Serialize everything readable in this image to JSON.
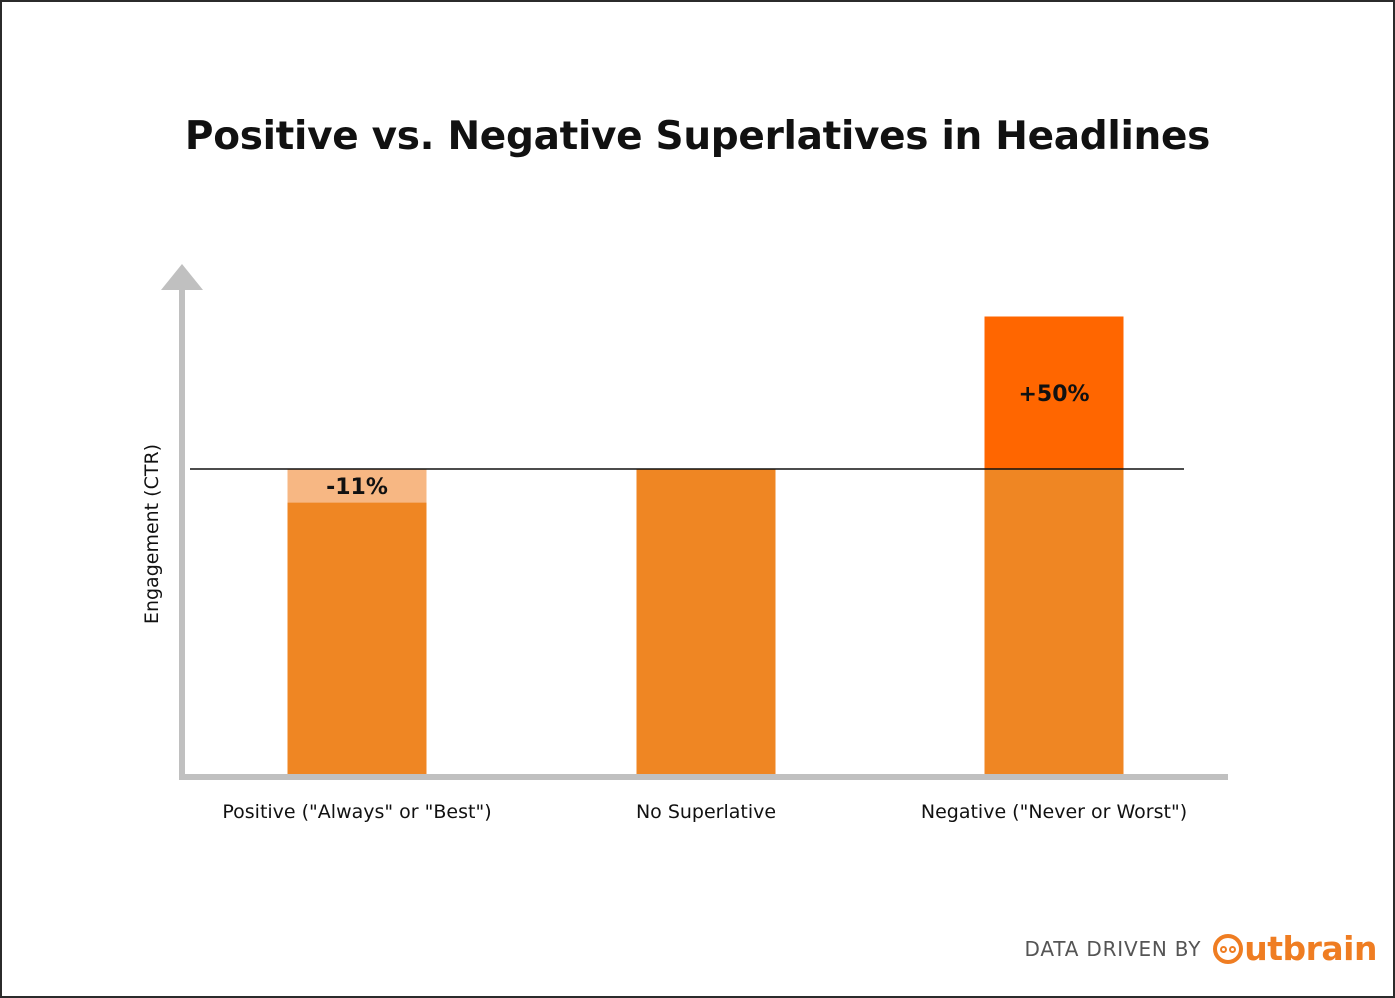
{
  "chart_data": {
    "type": "bar",
    "title": "Positive vs. Negative Superlatives in Headlines",
    "xlabel": "",
    "ylabel": "Engagement (CTR)",
    "categories": [
      "Positive (\"Always\" or \"Best\")",
      "No Superlative",
      "Negative (\"Never or Worst\")"
    ],
    "baseline": 100,
    "values": [
      89,
      100,
      150
    ],
    "change_labels": [
      "-11%",
      "",
      "+50%"
    ],
    "ylim": [
      0,
      165
    ],
    "grid": false,
    "y_ticks": false,
    "colors": {
      "base": "#ef8623",
      "decrease": "#f7b783",
      "increase": "#ff6600",
      "axis": "#c0c0c0",
      "reference_line": "#111111"
    }
  },
  "footer": {
    "text": "DATA DRIVEN BY",
    "logo_text": "utbrain",
    "logo_icon": "outbrain-face-icon"
  }
}
